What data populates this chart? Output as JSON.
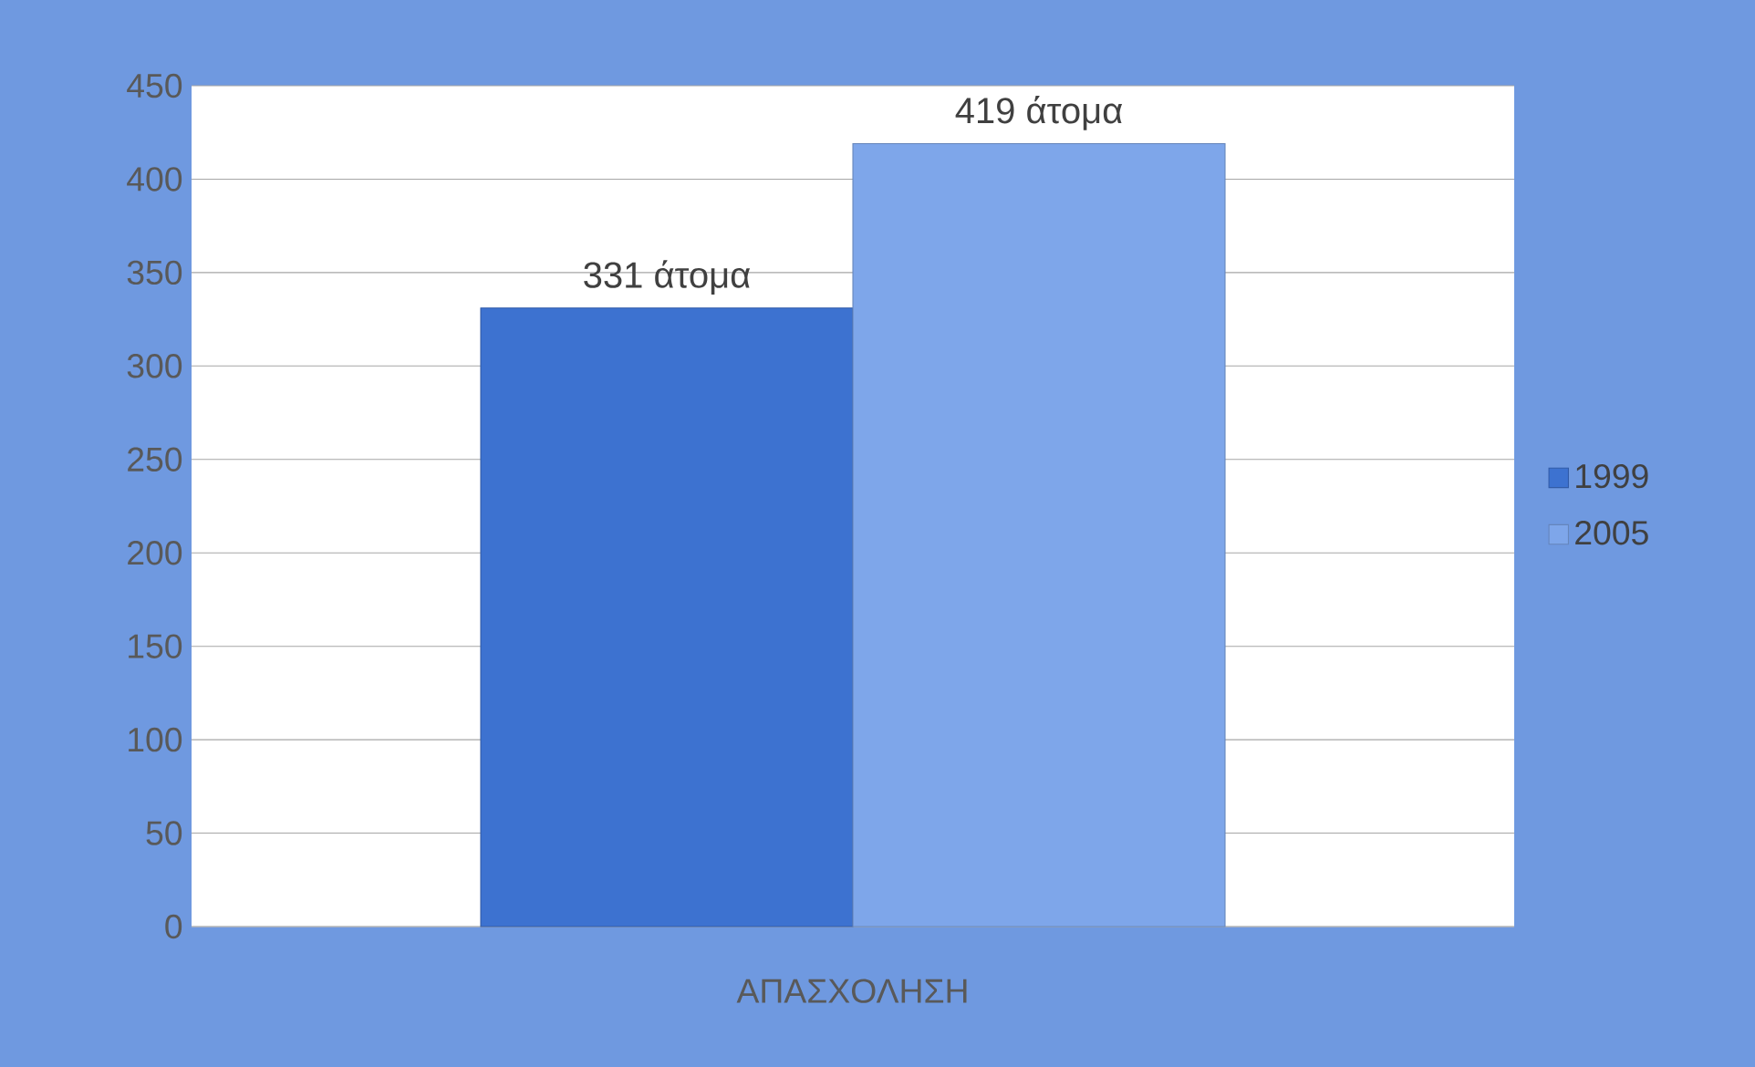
{
  "chart_data": {
    "type": "bar",
    "categories": [
      "ΑΠΑΣΧΟΛΗΣΗ"
    ],
    "series": [
      {
        "name": "1999",
        "color": "#3d72d0",
        "values": [
          331
        ],
        "value_labels": [
          "331 άτομα"
        ]
      },
      {
        "name": "2005",
        "color": "#7ea6ea",
        "values": [
          419
        ],
        "value_labels": [
          "419 άτομα"
        ]
      }
    ],
    "ylim": [
      0,
      450
    ],
    "yticks": [
      0,
      50,
      100,
      150,
      200,
      250,
      300,
      350,
      400,
      450
    ],
    "grid": "y",
    "legend": "right"
  }
}
